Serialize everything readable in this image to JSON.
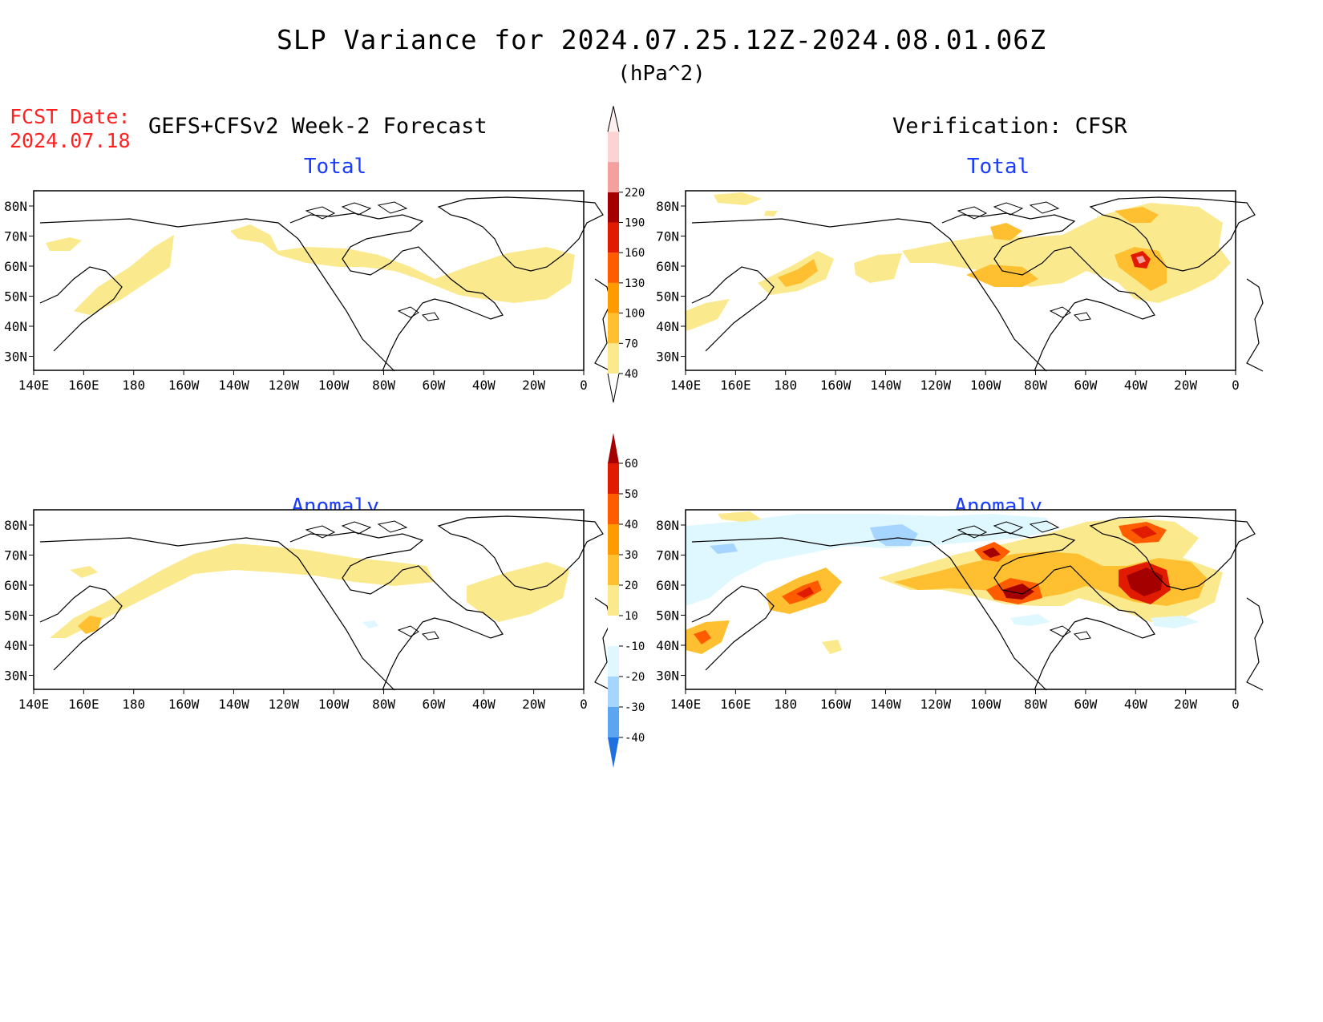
{
  "title": "SLP Variance for 2024.07.25.12Z-2024.08.01.06Z",
  "units": "(hPa^2)",
  "fcst_label": "FCST Date:",
  "fcst_date": "2024.07.18",
  "forecast_header": "GEFS+CFSv2 Week-2 Forecast",
  "verification_header": "Verification: CFSR",
  "panels": [
    {
      "title": "Total"
    },
    {
      "title": "Total"
    },
    {
      "title": "Anomaly"
    },
    {
      "title": "Anomaly"
    }
  ],
  "lat_labels": [
    "80N",
    "70N",
    "60N",
    "50N",
    "40N",
    "30N"
  ],
  "lon_labels": [
    "140E",
    "160E",
    "180",
    "160W",
    "140W",
    "120W",
    "100W",
    "80W",
    "60W",
    "40W",
    "20W",
    "0"
  ],
  "colorbar_total": {
    "levels": [
      "40",
      "70",
      "100",
      "130",
      "160",
      "190",
      "220"
    ],
    "colors": [
      "#fbe98d",
      "#fec030",
      "#ff9a00",
      "#ff5c00",
      "#e11b00",
      "#a50000",
      "#f4a0a0",
      "#fbd3d3"
    ]
  },
  "colorbar_anomaly": {
    "levels": [
      "60",
      "50",
      "40",
      "30",
      "20",
      "10",
      "-10",
      "-20",
      "-30",
      "-40"
    ],
    "colors": [
      "#a50000",
      "#e11b00",
      "#ff5c00",
      "#ff9a00",
      "#fec030",
      "#fbe98d",
      "#ffffff",
      "#dff7ff",
      "#a6d5ff",
      "#5ca5f0",
      "#1e6fe0"
    ]
  }
}
